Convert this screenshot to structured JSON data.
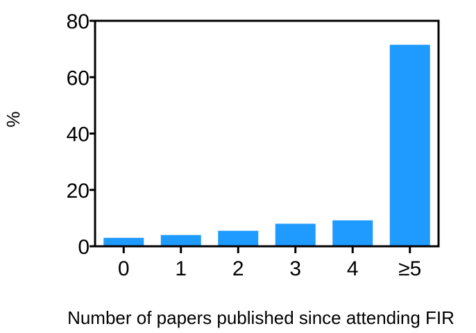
{
  "chart_data": {
    "type": "bar",
    "categories": [
      "0",
      "1",
      "2",
      "3",
      "4",
      "≥5"
    ],
    "values": [
      3,
      4,
      5.5,
      8,
      9.2,
      71.5
    ],
    "title": "",
    "xlabel": "Number of papers published since attending FIR",
    "ylabel": "%",
    "ylim": [
      0,
      80
    ],
    "yticks": [
      "0",
      "20",
      "40",
      "60",
      "80"
    ],
    "grid": false,
    "bar_color": "#1f9aff",
    "axis_color": "#000000"
  }
}
